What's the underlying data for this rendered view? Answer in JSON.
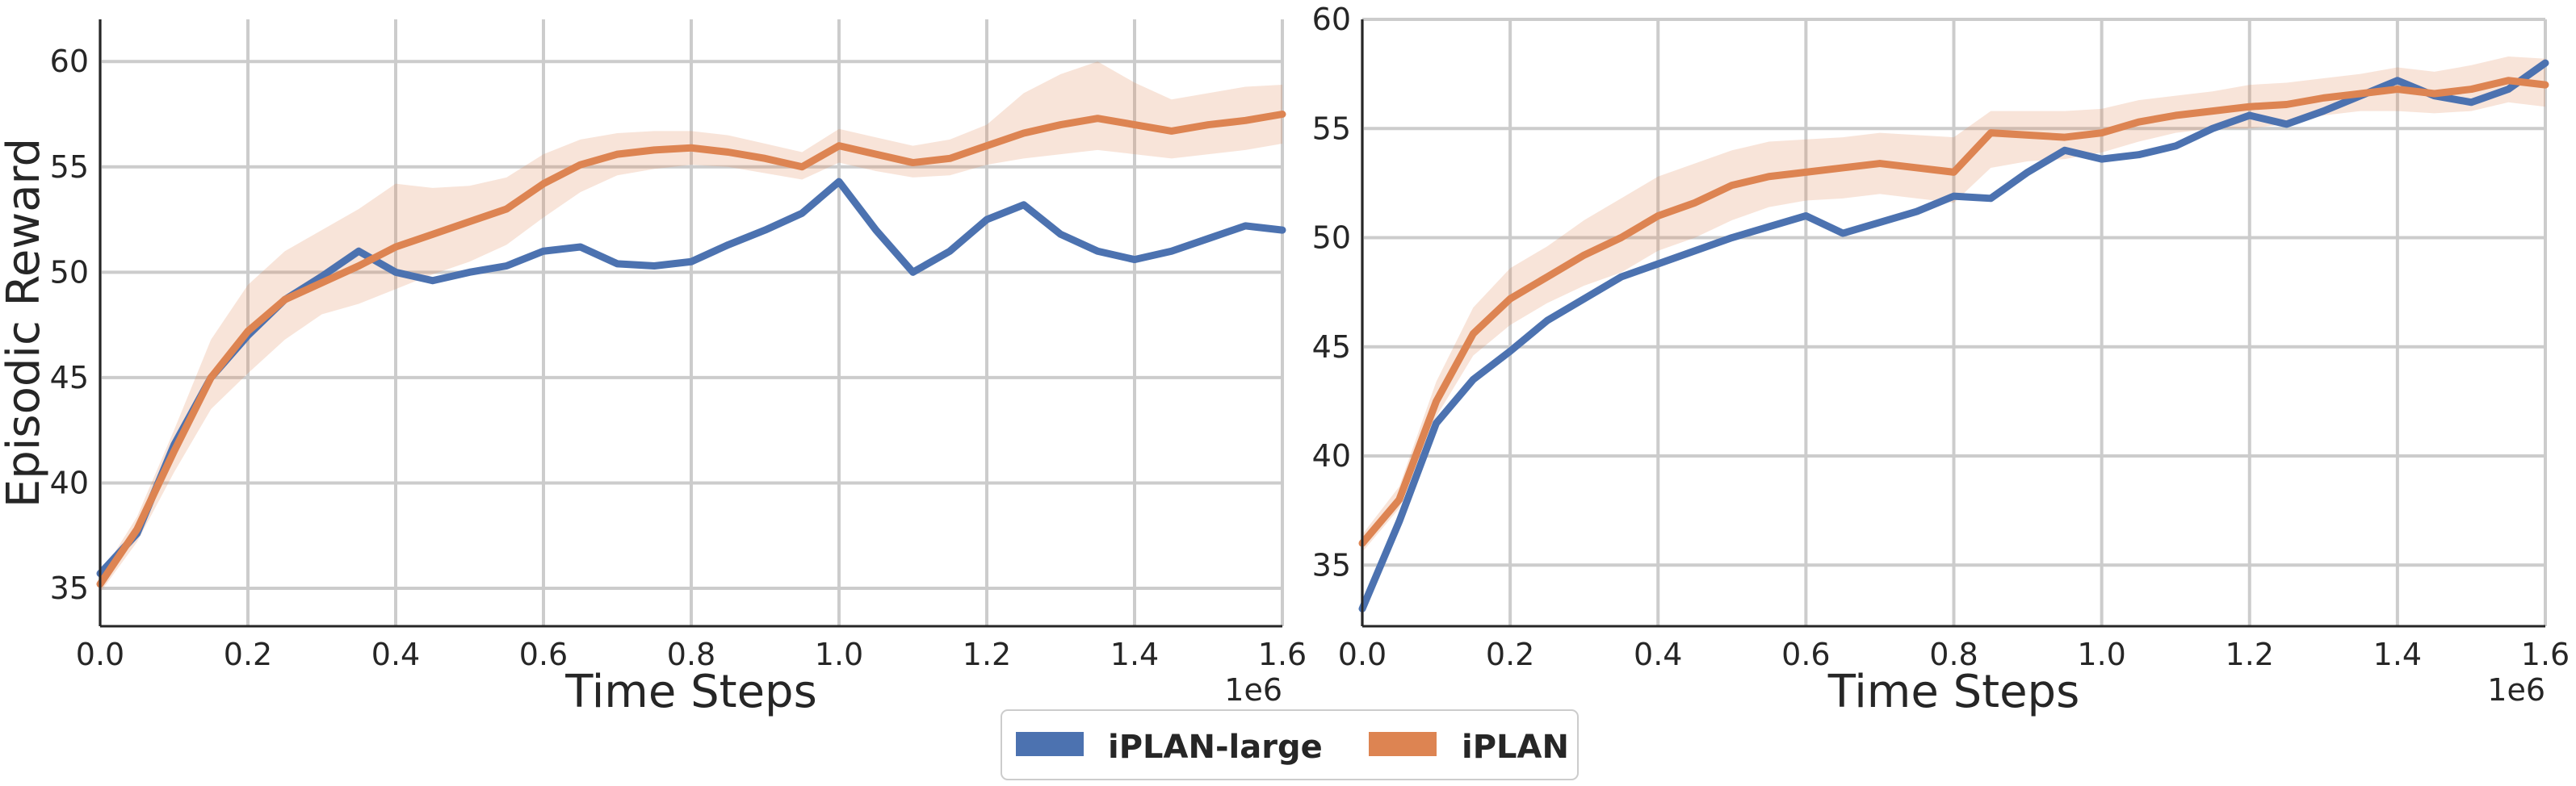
{
  "chart_data": [
    {
      "type": "line",
      "xlabel": "Time Steps",
      "ylabel": "Episodic Reward",
      "x_offset_label": "1e6",
      "xlim": [
        0,
        1.6
      ],
      "ylim": [
        33.2,
        62
      ],
      "xticks": [
        "0.0",
        "0.2",
        "0.4",
        "0.6",
        "0.8",
        "1.0",
        "1.2",
        "1.4",
        "1.6"
      ],
      "yticks": [
        "35",
        "40",
        "45",
        "50",
        "55",
        "60"
      ],
      "grid": true,
      "series": [
        {
          "name": "iPLAN-large",
          "color": "#4c72b0",
          "x": [
            0.0,
            0.05,
            0.1,
            0.15,
            0.2,
            0.25,
            0.3,
            0.35,
            0.4,
            0.45,
            0.5,
            0.55,
            0.6,
            0.65,
            0.7,
            0.75,
            0.8,
            0.85,
            0.9,
            0.95,
            1.0,
            1.05,
            1.1,
            1.15,
            1.2,
            1.25,
            1.3,
            1.35,
            1.4,
            1.45,
            1.5,
            1.55,
            1.6
          ],
          "values": [
            35.7,
            37.6,
            41.8,
            45.0,
            47.0,
            48.7,
            49.8,
            51.0,
            50.0,
            49.6,
            50.0,
            50.3,
            51.0,
            51.2,
            50.4,
            50.3,
            50.5,
            51.3,
            52.0,
            52.8,
            54.3,
            52.0,
            50.0,
            51.0,
            52.5,
            53.2,
            51.8,
            51.0,
            50.6,
            51.0,
            51.6,
            52.2,
            52.0
          ]
        },
        {
          "name": "iPLAN",
          "color": "#dd8452",
          "x": [
            0.0,
            0.05,
            0.1,
            0.15,
            0.2,
            0.25,
            0.3,
            0.35,
            0.4,
            0.45,
            0.5,
            0.55,
            0.6,
            0.65,
            0.7,
            0.75,
            0.8,
            0.85,
            0.9,
            0.95,
            1.0,
            1.05,
            1.1,
            1.15,
            1.2,
            1.25,
            1.3,
            1.35,
            1.4,
            1.45,
            1.5,
            1.55,
            1.6
          ],
          "values": [
            35.2,
            37.8,
            41.5,
            45.0,
            47.2,
            48.7,
            49.5,
            50.3,
            51.2,
            51.8,
            52.4,
            53.0,
            54.2,
            55.1,
            55.6,
            55.8,
            55.9,
            55.7,
            55.4,
            55.0,
            56.0,
            55.6,
            55.2,
            55.4,
            56.0,
            56.6,
            57.0,
            57.3,
            57.0,
            56.7,
            57.0,
            57.2,
            57.5
          ],
          "band_low": [
            34.8,
            37.2,
            40.5,
            43.5,
            45.2,
            46.8,
            48.0,
            48.5,
            49.2,
            49.9,
            50.5,
            51.3,
            52.6,
            53.8,
            54.6,
            54.9,
            55.1,
            55.0,
            54.7,
            54.4,
            55.2,
            54.8,
            54.5,
            54.6,
            55.1,
            55.4,
            55.6,
            55.8,
            55.6,
            55.4,
            55.6,
            55.8,
            56.1
          ],
          "band_high": [
            35.6,
            38.4,
            42.5,
            46.8,
            49.4,
            51.0,
            52.0,
            53.0,
            54.2,
            54.0,
            54.1,
            54.5,
            55.6,
            56.3,
            56.6,
            56.7,
            56.7,
            56.5,
            56.1,
            55.7,
            56.8,
            56.4,
            56.0,
            56.3,
            57.0,
            58.5,
            59.4,
            60.0,
            59.0,
            58.2,
            58.5,
            58.8,
            58.9
          ]
        }
      ]
    },
    {
      "type": "line",
      "xlabel": "Time Steps",
      "ylabel": "",
      "x_offset_label": "1e6",
      "xlim": [
        0,
        1.6
      ],
      "ylim": [
        32.2,
        60
      ],
      "xticks": [
        "0.0",
        "0.2",
        "0.4",
        "0.6",
        "0.8",
        "1.0",
        "1.2",
        "1.4",
        "1.6"
      ],
      "yticks": [
        "35",
        "40",
        "45",
        "50",
        "55",
        "60"
      ],
      "grid": true,
      "series": [
        {
          "name": "iPLAN-large",
          "color": "#4c72b0",
          "x": [
            0.0,
            0.05,
            0.1,
            0.15,
            0.2,
            0.25,
            0.3,
            0.35,
            0.4,
            0.45,
            0.5,
            0.55,
            0.6,
            0.65,
            0.7,
            0.75,
            0.8,
            0.85,
            0.9,
            0.95,
            1.0,
            1.05,
            1.1,
            1.15,
            1.2,
            1.25,
            1.3,
            1.35,
            1.4,
            1.45,
            1.5,
            1.55,
            1.6
          ],
          "values": [
            33.0,
            37.0,
            41.5,
            43.5,
            44.8,
            46.2,
            47.2,
            48.2,
            48.8,
            49.4,
            50.0,
            50.5,
            51.0,
            50.2,
            50.7,
            51.2,
            51.9,
            51.8,
            53.0,
            54.0,
            53.6,
            53.8,
            54.2,
            55.0,
            55.6,
            55.2,
            55.8,
            56.5,
            57.2,
            56.5,
            56.2,
            56.8,
            58.0
          ],
          "band_low": [],
          "band_high": []
        },
        {
          "name": "iPLAN",
          "color": "#dd8452",
          "x": [
            0.0,
            0.05,
            0.1,
            0.15,
            0.2,
            0.25,
            0.3,
            0.35,
            0.4,
            0.45,
            0.5,
            0.55,
            0.6,
            0.65,
            0.7,
            0.75,
            0.8,
            0.85,
            0.9,
            0.95,
            1.0,
            1.05,
            1.1,
            1.15,
            1.2,
            1.25,
            1.3,
            1.35,
            1.4,
            1.45,
            1.5,
            1.55,
            1.6
          ],
          "values": [
            36.0,
            38.0,
            42.5,
            45.6,
            47.2,
            48.2,
            49.2,
            50.0,
            51.0,
            51.6,
            52.4,
            52.8,
            53.0,
            53.2,
            53.4,
            53.2,
            53.0,
            54.8,
            54.7,
            54.6,
            54.8,
            55.3,
            55.6,
            55.8,
            56.0,
            56.1,
            56.4,
            56.6,
            56.8,
            56.6,
            56.8,
            57.2,
            57.0
          ],
          "band_low": [
            35.6,
            37.6,
            41.8,
            44.6,
            46.0,
            47.0,
            47.8,
            48.4,
            49.4,
            50.0,
            50.8,
            51.4,
            51.7,
            51.8,
            52.0,
            51.8,
            51.6,
            53.2,
            53.5,
            53.6,
            53.9,
            54.4,
            54.8,
            55.0,
            55.0,
            55.2,
            55.6,
            55.8,
            55.8,
            55.7,
            55.8,
            56.2,
            56.0
          ],
          "band_high": [
            36.4,
            38.6,
            43.4,
            46.8,
            48.6,
            49.6,
            50.8,
            51.8,
            52.8,
            53.4,
            54.0,
            54.4,
            54.5,
            54.6,
            54.8,
            54.7,
            54.6,
            55.8,
            55.8,
            55.8,
            55.9,
            56.3,
            56.5,
            56.7,
            57.0,
            57.1,
            57.3,
            57.5,
            57.8,
            57.6,
            57.9,
            58.3,
            58.2
          ]
        }
      ]
    }
  ],
  "legend": {
    "placement": "bottom-center",
    "items": [
      {
        "label": "iPLAN-large",
        "color": "#4c72b0"
      },
      {
        "label": "iPLAN",
        "color": "#dd8452"
      }
    ]
  }
}
